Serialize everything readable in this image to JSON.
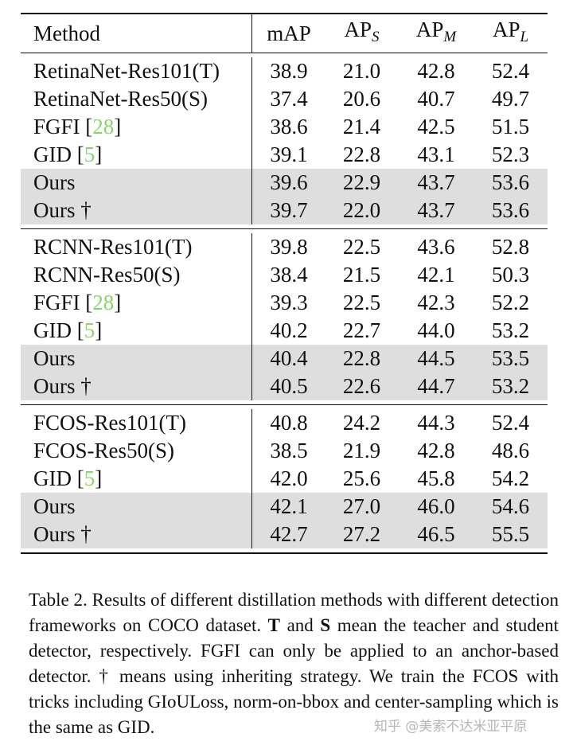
{
  "table": {
    "header": {
      "method": "Method",
      "map": "mAP",
      "aps": {
        "base": "AP",
        "sub": "S"
      },
      "apm": {
        "base": "AP",
        "sub": "M"
      },
      "apl": {
        "base": "AP",
        "sub": "L"
      }
    },
    "blocks": [
      {
        "rows": [
          {
            "method": "RetinaNet-Res101(T)",
            "cite": "",
            "map": "38.9",
            "aps": "21.0",
            "apm": "42.8",
            "apl": "52.4",
            "shaded": false
          },
          {
            "method": "RetinaNet-Res50(S)",
            "cite": "",
            "map": "37.4",
            "aps": "20.6",
            "apm": "40.7",
            "apl": "49.7",
            "shaded": false
          },
          {
            "method": "FGFI",
            "cite": "28",
            "map": "38.6",
            "aps": "21.4",
            "apm": "42.5",
            "apl": "51.5",
            "shaded": false
          },
          {
            "method": "GID",
            "cite": "5",
            "map": "39.1",
            "aps": "22.8",
            "apm": "43.1",
            "apl": "52.3",
            "shaded": false
          },
          {
            "method": "Ours",
            "cite": "",
            "map": "39.6",
            "aps": "22.9",
            "apm": "43.7",
            "apl": "53.6",
            "shaded": true
          },
          {
            "method": "Ours †",
            "cite": "",
            "map": "39.7",
            "aps": "22.0",
            "apm": "43.7",
            "apl": "53.6",
            "shaded": true
          }
        ]
      },
      {
        "rows": [
          {
            "method": "RCNN-Res101(T)",
            "cite": "",
            "map": "39.8",
            "aps": "22.5",
            "apm": "43.6",
            "apl": "52.8",
            "shaded": false
          },
          {
            "method": "RCNN-Res50(S)",
            "cite": "",
            "map": "38.4",
            "aps": "21.5",
            "apm": "42.1",
            "apl": "50.3",
            "shaded": false
          },
          {
            "method": "FGFI",
            "cite": "28",
            "map": "39.3",
            "aps": "22.5",
            "apm": "42.3",
            "apl": "52.2",
            "shaded": false
          },
          {
            "method": "GID",
            "cite": "5",
            "map": "40.2",
            "aps": "22.7",
            "apm": "44.0",
            "apl": "53.2",
            "shaded": false
          },
          {
            "method": "Ours",
            "cite": "",
            "map": "40.4",
            "aps": "22.8",
            "apm": "44.5",
            "apl": "53.5",
            "shaded": true
          },
          {
            "method": "Ours †",
            "cite": "",
            "map": "40.5",
            "aps": "22.6",
            "apm": "44.7",
            "apl": "53.2",
            "shaded": true
          }
        ]
      },
      {
        "rows": [
          {
            "method": "FCOS-Res101(T)",
            "cite": "",
            "map": "40.8",
            "aps": "24.2",
            "apm": "44.3",
            "apl": "52.4",
            "shaded": false
          },
          {
            "method": "FCOS-Res50(S)",
            "cite": "",
            "map": "38.5",
            "aps": "21.9",
            "apm": "42.8",
            "apl": "48.6",
            "shaded": false
          },
          {
            "method": "GID",
            "cite": "5",
            "map": "42.0",
            "aps": "25.6",
            "apm": "45.8",
            "apl": "54.2",
            "shaded": false
          },
          {
            "method": "Ours",
            "cite": "",
            "map": "42.1",
            "aps": "27.0",
            "apm": "46.0",
            "apl": "54.6",
            "shaded": true
          },
          {
            "method": "Ours †",
            "cite": "",
            "map": "42.7",
            "aps": "27.2",
            "apm": "46.5",
            "apl": "55.5",
            "shaded": true
          }
        ]
      }
    ]
  },
  "caption": {
    "part1": "Table 2.  Results of different distillation methods with different detection frameworks on COCO dataset. ",
    "t_bold": "T",
    "part2": " and ",
    "s_bold": "S",
    "part3": " mean the teacher and student detector, respectively.  FGFI can only be applied to an anchor-based detector.  † means using inheriting strategy.  We train the FCOS with tricks including GIoULoss, norm-on-bbox and center-sampling which is the same as GID."
  },
  "watermark": "知乎 @美索不达米亚平原",
  "colors": {
    "citation": "#8bd36e",
    "shaded_row": "#dedede"
  }
}
